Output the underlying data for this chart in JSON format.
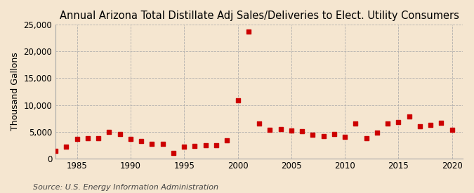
{
  "title": "Annual Arizona Total Distillate Adj Sales/Deliveries to Elect. Utility Consumers",
  "ylabel": "Thousand Gallons",
  "source": "Source: U.S. Energy Information Administration",
  "background_color": "#f5e6d0",
  "marker_color": "#cc0000",
  "years": [
    1983,
    1984,
    1985,
    1986,
    1987,
    1988,
    1989,
    1990,
    1991,
    1992,
    1993,
    1994,
    1995,
    1996,
    1997,
    1998,
    1999,
    2000,
    2001,
    2002,
    2003,
    2004,
    2005,
    2006,
    2007,
    2008,
    2009,
    2010,
    2011,
    2012,
    2013,
    2014,
    2015,
    2016,
    2017,
    2018,
    2019,
    2020
  ],
  "values": [
    1400,
    2200,
    3600,
    3700,
    3800,
    5000,
    4500,
    3600,
    3200,
    2700,
    2700,
    1000,
    2200,
    2300,
    2400,
    2500,
    3400,
    10900,
    23700,
    6500,
    5300,
    5500,
    5200,
    5100,
    4400,
    4200,
    4500,
    4000,
    6500,
    3800,
    4800,
    6500,
    6800,
    7800,
    6000,
    6300,
    6700,
    5300
  ],
  "xlim": [
    1983,
    2021
  ],
  "ylim": [
    0,
    25000
  ],
  "yticks": [
    0,
    5000,
    10000,
    15000,
    20000,
    25000
  ],
  "xticks": [
    1985,
    1990,
    1995,
    2000,
    2005,
    2010,
    2015,
    2020
  ],
  "grid_color": "#aaaaaa",
  "title_fontsize": 10.5,
  "label_fontsize": 9,
  "tick_fontsize": 8.5,
  "source_fontsize": 8
}
